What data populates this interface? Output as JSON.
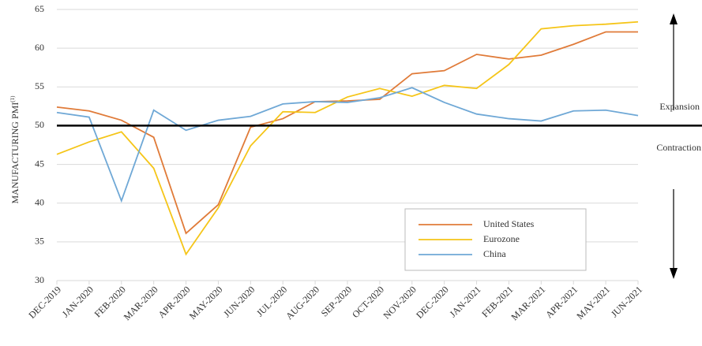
{
  "chart_data": {
    "type": "line",
    "y_label": "MANUFACTURING PMI",
    "y_label_note": "(1)",
    "annotations": {
      "upper": "Expansion",
      "lower": "Contraction"
    },
    "reference_line": 50,
    "categories": [
      "DEC-2019",
      "JAN-2020",
      "FEB-2020",
      "MAR-2020",
      "APR-2020",
      "MAY-2020",
      "JUN-2020",
      "JUL-2020",
      "AUG-2020",
      "SEP-2020",
      "OCT-2020",
      "NOV-2020",
      "DEC-2020",
      "JAN-2021",
      "FEB-2021",
      "MAR-2021",
      "APR-2021",
      "MAY-2021",
      "JUN-2021"
    ],
    "series": [
      {
        "name": "United States",
        "color": "#e07b39",
        "values": [
          52.4,
          51.9,
          50.7,
          48.5,
          36.1,
          39.8,
          49.8,
          50.9,
          53.1,
          53.2,
          53.4,
          56.7,
          57.1,
          59.2,
          58.6,
          59.1,
          60.5,
          62.1,
          62.1
        ]
      },
      {
        "name": "Eurozone",
        "color": "#f5c518",
        "values": [
          46.3,
          47.9,
          49.2,
          44.5,
          33.4,
          39.4,
          47.4,
          51.8,
          51.7,
          53.7,
          54.8,
          53.8,
          55.2,
          54.8,
          57.9,
          62.5,
          62.9,
          63.1,
          63.4
        ]
      },
      {
        "name": "China",
        "color": "#6fa8d6",
        "values": [
          51.7,
          51.1,
          40.3,
          52.0,
          49.4,
          50.7,
          51.2,
          52.8,
          53.1,
          53.0,
          53.6,
          54.9,
          53.0,
          51.5,
          50.9,
          50.6,
          51.9,
          52.0,
          51.3
        ]
      }
    ],
    "ylim": [
      30,
      65
    ],
    "yticks": [
      30,
      35,
      40,
      45,
      50,
      55,
      60,
      65
    ],
    "grid": true
  }
}
